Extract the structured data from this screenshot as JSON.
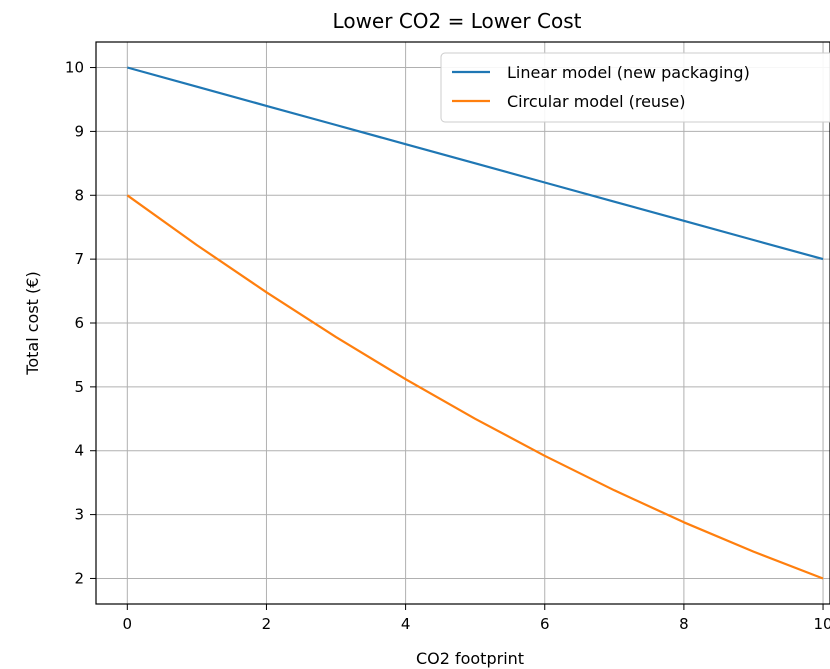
{
  "chart_data": {
    "type": "line",
    "title": "Lower CO2 = Lower Cost",
    "xlabel": "CO2 footprint",
    "ylabel": "Total cost (€)",
    "xlim": [
      -0.45,
      10.1
    ],
    "ylim": [
      1.6,
      10.4
    ],
    "xticks": [
      0,
      2,
      4,
      6,
      8,
      10
    ],
    "yticks": [
      2,
      3,
      4,
      5,
      6,
      7,
      8,
      9,
      10
    ],
    "grid": true,
    "legend_position": "top-right",
    "series": [
      {
        "name": "Linear model (new packaging)",
        "color": "#1f77b4",
        "x": [
          0,
          1,
          2,
          3,
          4,
          5,
          6,
          7,
          8,
          9,
          10
        ],
        "y": [
          10,
          9.7,
          9.4,
          9.1,
          8.8,
          8.5,
          8.2,
          7.9,
          7.6,
          7.3,
          7
        ]
      },
      {
        "name": "Circular model (reuse)",
        "color": "#ff7f0e",
        "x": [
          0,
          1,
          2,
          3,
          4,
          5,
          6,
          7,
          8,
          9,
          10
        ],
        "y": [
          8,
          7.22,
          6.48,
          5.78,
          5.12,
          4.5,
          3.92,
          3.38,
          2.88,
          2.42,
          2
        ]
      }
    ]
  }
}
